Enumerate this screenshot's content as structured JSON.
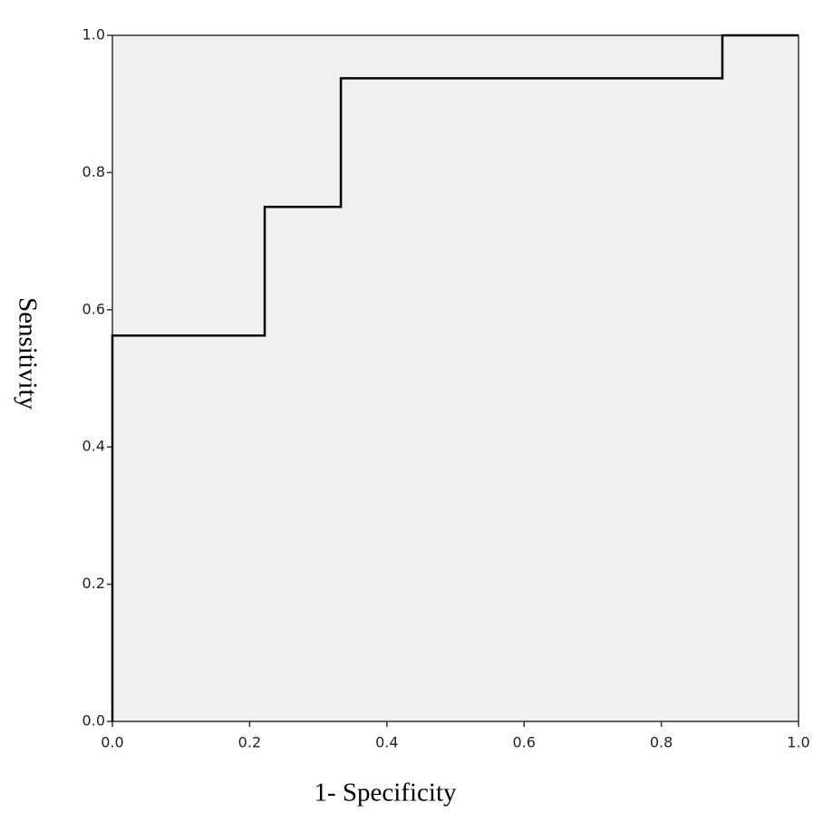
{
  "chart_data": {
    "type": "line",
    "x_label": "1- Specificity",
    "y_label": "Sensitivity",
    "x": [
      0,
      0,
      0.222,
      0.222,
      0.333,
      0.333,
      0.889,
      0.889,
      1
    ],
    "series": [
      {
        "color": "#000000",
        "values": [
          0,
          0.5625,
          0.5625,
          0.75,
          0.75,
          0.9375,
          0.9375,
          1,
          1
        ]
      }
    ],
    "xlim": [
      0,
      1
    ],
    "ylim": [
      0,
      1
    ],
    "xticks": [
      {
        "value": 0,
        "label": "0.0"
      },
      0.2,
      0.4,
      0.6,
      0.8,
      {
        "value": 1,
        "label": "1.0"
      }
    ],
    "yticks": [
      {
        "value": 0,
        "label": "0.0"
      },
      0.2,
      0.4,
      0.6,
      0.8,
      {
        "value": 1,
        "label": "1.0"
      }
    ],
    "background": "#f0f0f0"
  }
}
